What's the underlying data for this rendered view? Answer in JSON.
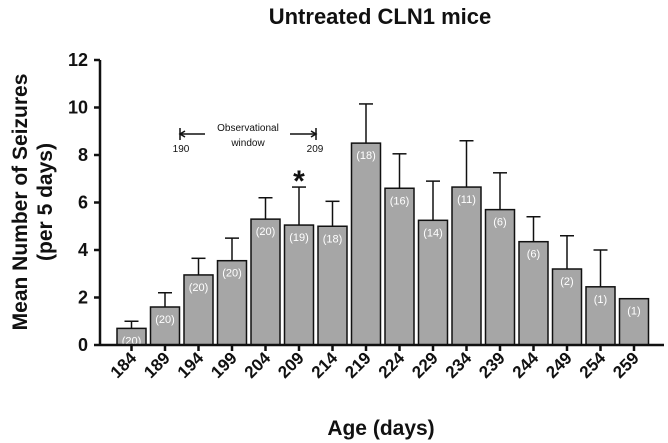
{
  "chart_data": {
    "type": "bar",
    "title": "Untreated CLN1 mice",
    "xlabel": "Age (days)",
    "ylabel_line1": "Mean Number of Seizures",
    "ylabel_line2": "(per 5 days)",
    "ylim": [
      0,
      12
    ],
    "yticks": [
      0,
      2,
      4,
      6,
      8,
      10,
      12
    ],
    "categories": [
      "184",
      "189",
      "194",
      "199",
      "204",
      "209",
      "214",
      "219",
      "224",
      "229",
      "234",
      "239",
      "244",
      "249",
      "254",
      "259"
    ],
    "values": [
      0.7,
      1.6,
      2.95,
      3.55,
      5.3,
      5.05,
      5.0,
      8.5,
      6.6,
      5.25,
      6.65,
      5.7,
      4.35,
      3.2,
      2.45,
      1.95
    ],
    "errors": [
      0.3,
      0.6,
      0.7,
      0.95,
      0.9,
      1.6,
      1.05,
      1.65,
      1.45,
      1.65,
      1.95,
      1.55,
      1.05,
      1.4,
      1.55,
      0.0
    ],
    "n_labels": [
      "(20)",
      "(20)",
      "(20)",
      "(20)",
      "(20)",
      "(19)",
      "(18)",
      "(18)",
      "(16)",
      "(14)",
      "(11)",
      "(6)",
      "(6)",
      "(2)",
      "(1)",
      "(1)"
    ],
    "annotations": {
      "observational_window_line1": "Observational",
      "observational_window_line2": "window",
      "window_start": "190",
      "window_end": "209",
      "significance_marker": "*",
      "significance_category": "209"
    }
  }
}
